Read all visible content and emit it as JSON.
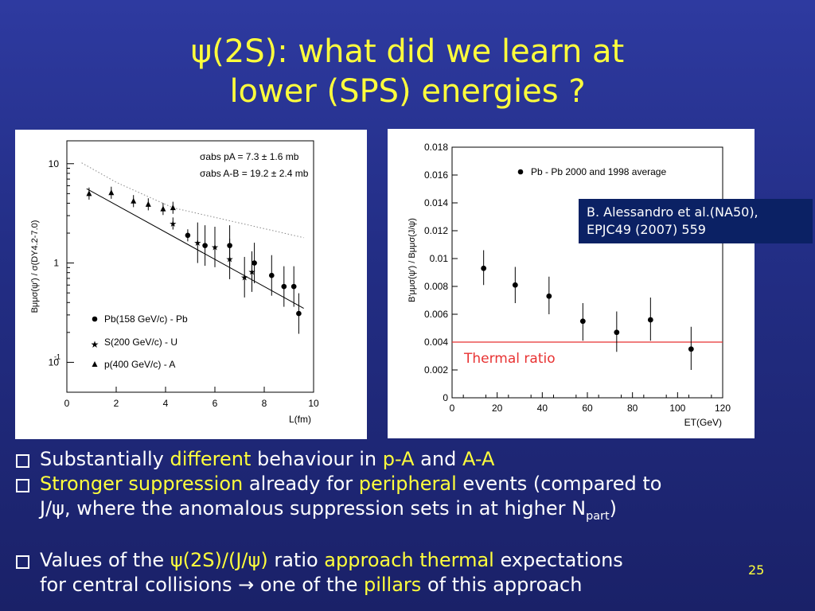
{
  "slide": {
    "title_line1": "ψ(2S): what did we learn at",
    "title_line2": "lower (SPS) energies ?",
    "page_number": "25"
  },
  "reference": {
    "line1": "B. Alessandro et al.(NA50),",
    "line2": "EPJC49 (2007) 559"
  },
  "chart_data": [
    {
      "type": "scatter",
      "xlabel": "L(fm)",
      "ylabel": "Bμμσ(ψ′) / σ(DY4.2-7.0)",
      "xlim": [
        0,
        10
      ],
      "ylim": [
        0.05,
        17
      ],
      "yscale": "log",
      "x_ticks": [
        "0",
        "2",
        "4",
        "6",
        "8",
        "10"
      ],
      "y_ticks": [
        "10",
        "1",
        "10-1"
      ],
      "annotations": [
        "σabs pA = 7.3 ± 1.6 mb",
        "σabs A-B = 19.2 ± 2.4 mb"
      ],
      "series": [
        {
          "name": "Pb(158 GeV/c) - Pb",
          "marker": "circle",
          "points": [
            [
              4.9,
              1.9
            ],
            [
              5.6,
              1.5
            ],
            [
              6.6,
              1.5
            ],
            [
              7.6,
              1.0
            ],
            [
              8.3,
              0.75
            ],
            [
              8.8,
              0.58
            ],
            [
              9.2,
              0.58
            ],
            [
              9.4,
              0.31
            ]
          ]
        },
        {
          "name": "S(200 GeV/c) - U",
          "marker": "star",
          "points": [
            [
              4.3,
              2.5
            ],
            [
              5.3,
              1.6
            ],
            [
              6.0,
              1.45
            ],
            [
              6.6,
              1.1
            ],
            [
              7.2,
              0.72
            ],
            [
              7.5,
              0.82
            ]
          ]
        },
        {
          "name": "p(400 GeV/c) - A",
          "marker": "triangle",
          "points": [
            [
              0.9,
              5.0
            ],
            [
              1.8,
              5.1
            ],
            [
              2.7,
              4.2
            ],
            [
              3.3,
              3.9
            ],
            [
              3.9,
              3.5
            ],
            [
              4.3,
              3.6
            ]
          ]
        }
      ],
      "fit_lines": [
        {
          "style": "solid",
          "points": [
            [
              0.8,
              5.6
            ],
            [
              9.6,
              0.35
            ]
          ]
        },
        {
          "style": "dotted",
          "points": [
            [
              0.6,
              10.2
            ],
            [
              2.0,
              6.5
            ],
            [
              4.3,
              3.6
            ]
          ]
        },
        {
          "style": "dotted",
          "points": [
            [
              4.3,
              3.6
            ],
            [
              9.6,
              1.8
            ]
          ]
        }
      ]
    },
    {
      "type": "scatter",
      "xlabel": "ET(GeV)",
      "ylabel": "B′μμσ(ψ′) / Bμμσ(J/ψ)",
      "xlim": [
        0,
        120
      ],
      "ylim": [
        0,
        0.018
      ],
      "x_ticks": [
        "0",
        "20",
        "40",
        "60",
        "80",
        "100",
        "120"
      ],
      "y_ticks": [
        "0",
        "0.002",
        "0.004",
        "0.006",
        "0.008",
        "0.01",
        "0.012",
        "0.014",
        "0.016",
        "0.018"
      ],
      "legend": "Pb - Pb 2000 and 1998 average",
      "thermal_ratio": 0.004,
      "thermal_label": "Thermal ratio",
      "thermal_color": "#e83232",
      "points": [
        {
          "x": 14,
          "y": 0.0093,
          "lo": 0.0081,
          "hi": 0.0106
        },
        {
          "x": 28,
          "y": 0.0081,
          "lo": 0.0068,
          "hi": 0.0094
        },
        {
          "x": 43,
          "y": 0.0073,
          "lo": 0.006,
          "hi": 0.0087
        },
        {
          "x": 58,
          "y": 0.0055,
          "lo": 0.0041,
          "hi": 0.0068
        },
        {
          "x": 73,
          "y": 0.0047,
          "lo": 0.0033,
          "hi": 0.0062
        },
        {
          "x": 88,
          "y": 0.0056,
          "lo": 0.0041,
          "hi": 0.0072
        },
        {
          "x": 106,
          "y": 0.0035,
          "lo": 0.002,
          "hi": 0.0051
        }
      ]
    }
  ],
  "bullets": {
    "b1": {
      "t1": "Substantially ",
      "h1": "different",
      "t2": " behaviour in ",
      "h2": "p-A",
      "t3": " and ",
      "h3": "A-A"
    },
    "b2": {
      "h1": "Stronger suppression",
      "t1": " already for ",
      "h2": "peripheral",
      "t2": " events (compared to",
      "t3": "J/ψ, where the anomalous suppression sets in at higher N",
      "sub": "part",
      "t4": ")"
    },
    "b3": {
      "t1": "Values of the ",
      "h1": "ψ(2S)/(J/ψ)",
      "t2": " ratio ",
      "h2": "approach thermal",
      "t3": " expectations",
      "t4": "for central collisions ",
      "arrow": "→",
      "t5": " one of the ",
      "h3": "pillars",
      "t6": " of this approach"
    }
  },
  "colors": {
    "background": "#2a3595",
    "accent_yellow": "#ffff3c",
    "ref_box": "#0b2164",
    "thermal_red": "#e83232"
  }
}
